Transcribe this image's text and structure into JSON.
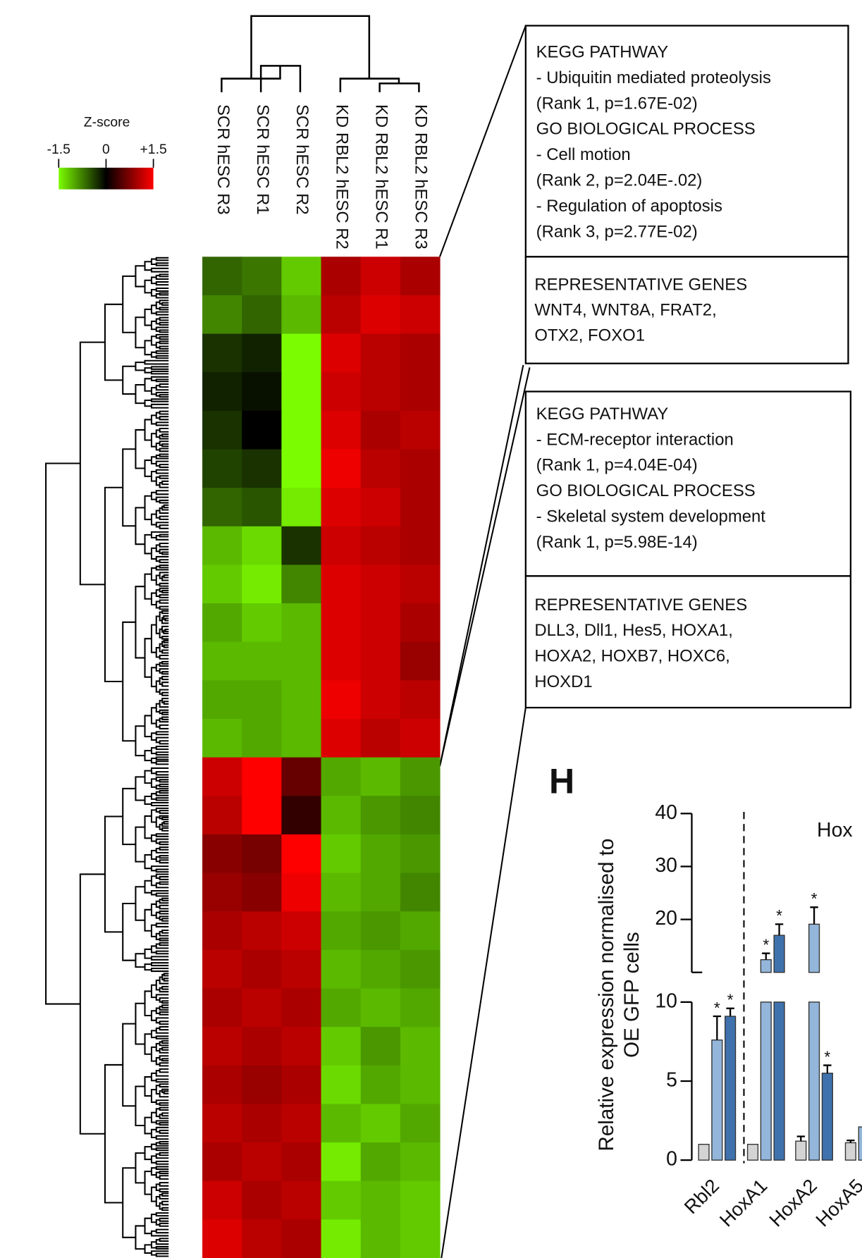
{
  "heatmap": {
    "colorbar": {
      "title": "Z-score",
      "range": [
        -1.5,
        1.5
      ],
      "ticks": [
        -1.5,
        0,
        {
          "value": 1.5,
          "label": "+1.5"
        }
      ],
      "low_color": "#7cfc00",
      "mid_color": "#000000",
      "high_color": "#ff0000"
    },
    "columns": [
      "SCR hESC R3",
      "SCR hESC R1",
      "SCR hESC R2",
      "KD RBL2 hESC R2",
      "KD RBL2 hESC R1",
      "KD RBL2 hESC R3"
    ],
    "rows": [
      [
        -0.6,
        -0.7,
        -1.2,
        1.0,
        1.2,
        1.0
      ],
      [
        -0.8,
        -0.6,
        -1.1,
        1.1,
        1.3,
        1.2
      ],
      [
        -0.3,
        -0.2,
        -1.5,
        1.3,
        1.1,
        1.0
      ],
      [
        -0.2,
        -0.1,
        -1.5,
        1.2,
        1.1,
        1.0
      ],
      [
        -0.3,
        0,
        -1.5,
        1.3,
        1.0,
        1.1
      ],
      [
        -0.4,
        -0.3,
        -1.5,
        1.4,
        1.1,
        1.0
      ],
      [
        -0.6,
        -0.5,
        -1.4,
        1.3,
        1.2,
        1.0
      ],
      [
        -1.1,
        -1.3,
        -0.3,
        1.2,
        1.1,
        1.0
      ],
      [
        -1.2,
        -1.4,
        -0.8,
        1.3,
        1.2,
        1.1
      ],
      [
        -1.0,
        -1.2,
        -1.1,
        1.3,
        1.2,
        1.0
      ],
      [
        -1.1,
        -1.1,
        -1.1,
        1.3,
        1.2,
        0.9
      ],
      [
        -1.0,
        -1.0,
        -1.1,
        1.4,
        1.2,
        1.1
      ],
      [
        -1.1,
        -1.0,
        -1.1,
        1.3,
        1.1,
        1.2
      ],
      [
        1.2,
        1.5,
        0.6,
        -1.0,
        -1.1,
        -0.9
      ],
      [
        1.1,
        1.5,
        0.3,
        -1.1,
        -0.9,
        -0.8
      ],
      [
        0.8,
        0.7,
        1.5,
        -1.2,
        -1.0,
        -0.9
      ],
      [
        0.9,
        0.8,
        1.4,
        -1.1,
        -1.0,
        -0.8
      ],
      [
        1.0,
        1.1,
        1.2,
        -1.0,
        -0.9,
        -1.0
      ],
      [
        1.1,
        1.0,
        1.1,
        -1.1,
        -1.0,
        -0.9
      ],
      [
        1.0,
        1.1,
        1.0,
        -1.0,
        -1.1,
        -1.0
      ],
      [
        1.1,
        1.0,
        1.1,
        -1.2,
        -0.9,
        -1.1
      ],
      [
        1.0,
        0.9,
        1.0,
        -1.3,
        -1.0,
        -1.1
      ],
      [
        1.1,
        1.0,
        1.1,
        -1.1,
        -1.2,
        -1.0
      ],
      [
        1.0,
        1.1,
        1.0,
        -1.4,
        -1.0,
        -1.1
      ],
      [
        1.2,
        1.0,
        1.1,
        -1.2,
        -1.1,
        -1.2
      ],
      [
        1.3,
        1.1,
        1.0,
        -1.4,
        -1.1,
        -1.2
      ]
    ]
  },
  "annotations": [
    {
      "lines": [
        "KEGG PATHWAY",
        "- Ubiquitin mediated proteolysis",
        "(Rank 1, p=1.67E-02)",
        "GO BIOLOGICAL PROCESS",
        "- Cell motion",
        "(Rank 2, p=2.04E-.02)",
        "- Regulation of apoptosis",
        "(Rank 3, p=2.77E-02)"
      ]
    },
    {
      "lines": [
        "REPRESENTATIVE GENES",
        "WNT4, WNT8A, FRAT2,",
        "OTX2, FOXO1"
      ]
    },
    {
      "lines": [
        "KEGG PATHWAY",
        "- ECM-receptor interaction",
        "(Rank 1, p=4.04E-04)",
        "GO BIOLOGICAL PROCESS",
        "- Skeletal system development",
        "(Rank 1, p=5.98E-14)"
      ]
    },
    {
      "lines": [
        "REPRESENTATIVE GENES",
        "DLL3, Dll1, Hes5, HOXA1,",
        "HOXA2, HOXB7, HOXC6,",
        "HOXD1"
      ]
    }
  ],
  "chart_data": {
    "type": "bar",
    "panel_label": "H",
    "ylabel": [
      "Relative expression normalised to",
      "OE GFP cells"
    ],
    "group_label": "Hox",
    "categories": [
      "Rbl2",
      "HoxA1",
      "HoxA2",
      "HoxA5"
    ],
    "series": [
      {
        "color": "#d4d4d4",
        "values": [
          1,
          1,
          1.2,
          1.1
        ],
        "errors": [
          null,
          null,
          0.3,
          0.15
        ],
        "markers": [
          null,
          null,
          null,
          null
        ]
      },
      {
        "color": "#93b6da",
        "values": [
          7.6,
          12.4,
          19.1,
          2.1
        ],
        "errors": [
          1.5,
          1.2,
          3.2,
          null
        ],
        "markers": [
          "*",
          "*",
          "*",
          null
        ]
      },
      {
        "color": "#3f72ad",
        "values": [
          9.1,
          17.0,
          5.5,
          null
        ],
        "errors": [
          0.5,
          2.1,
          0.5,
          null
        ],
        "markers": [
          "*",
          "*",
          "*",
          null
        ]
      }
    ],
    "ylim": [
      0,
      40
    ],
    "ylim_segments": [
      [
        0,
        10
      ],
      [
        10,
        40
      ]
    ],
    "yticks": [
      0,
      5,
      10,
      20,
      30,
      40
    ]
  }
}
